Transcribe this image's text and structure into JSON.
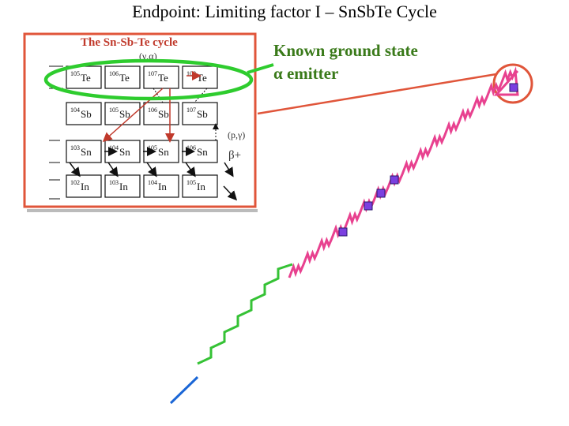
{
  "title": "Endpoint: Limiting factor I – SnSbTe Cycle",
  "callout": {
    "line1": "Known ground state",
    "line2_symbol": "α",
    "line2_text": " emitter"
  },
  "inset": {
    "title": "The Sn-Sb-Te cycle",
    "labels": {
      "gamma_alpha": "(γ,α)",
      "p_gamma": "(p,γ)",
      "beta_plus": "β+"
    },
    "rows": [
      {
        "element": "Te",
        "cells": [
          {
            "mass": "105",
            "sym": "Te"
          },
          {
            "mass": "106",
            "sym": "Te"
          },
          {
            "mass": "107",
            "sym": "Te"
          },
          {
            "mass": "108",
            "sym": "Te"
          }
        ]
      },
      {
        "element": "Sb",
        "cells": [
          {
            "mass": "104",
            "sym": "Sb"
          },
          {
            "mass": "105",
            "sym": "Sb"
          },
          {
            "mass": "106",
            "sym": "Sb"
          },
          {
            "mass": "107",
            "sym": "Sb"
          }
        ]
      },
      {
        "element": "Sn",
        "cells": [
          {
            "mass": "103",
            "sym": "Sn"
          },
          {
            "mass": "104",
            "sym": "Sn"
          },
          {
            "mass": "105",
            "sym": "Sn"
          },
          {
            "mass": "106",
            "sym": "Sn"
          }
        ]
      },
      {
        "element": "In",
        "cells": [
          {
            "mass": "102",
            "sym": "In"
          },
          {
            "mass": "103",
            "sym": "In"
          },
          {
            "mass": "104",
            "sym": "In"
          },
          {
            "mass": "105",
            "sym": "In"
          }
        ]
      }
    ]
  },
  "colors": {
    "inset_border": "#e0553a",
    "highlight_ellipse": "#2ecc2e",
    "arrow_red": "#c0392b",
    "callout_line": "#e0553a",
    "path_pink": "#e8418f",
    "path_green": "#35c235",
    "path_blue": "#1a66d6",
    "marker": "#7b3fe0"
  }
}
